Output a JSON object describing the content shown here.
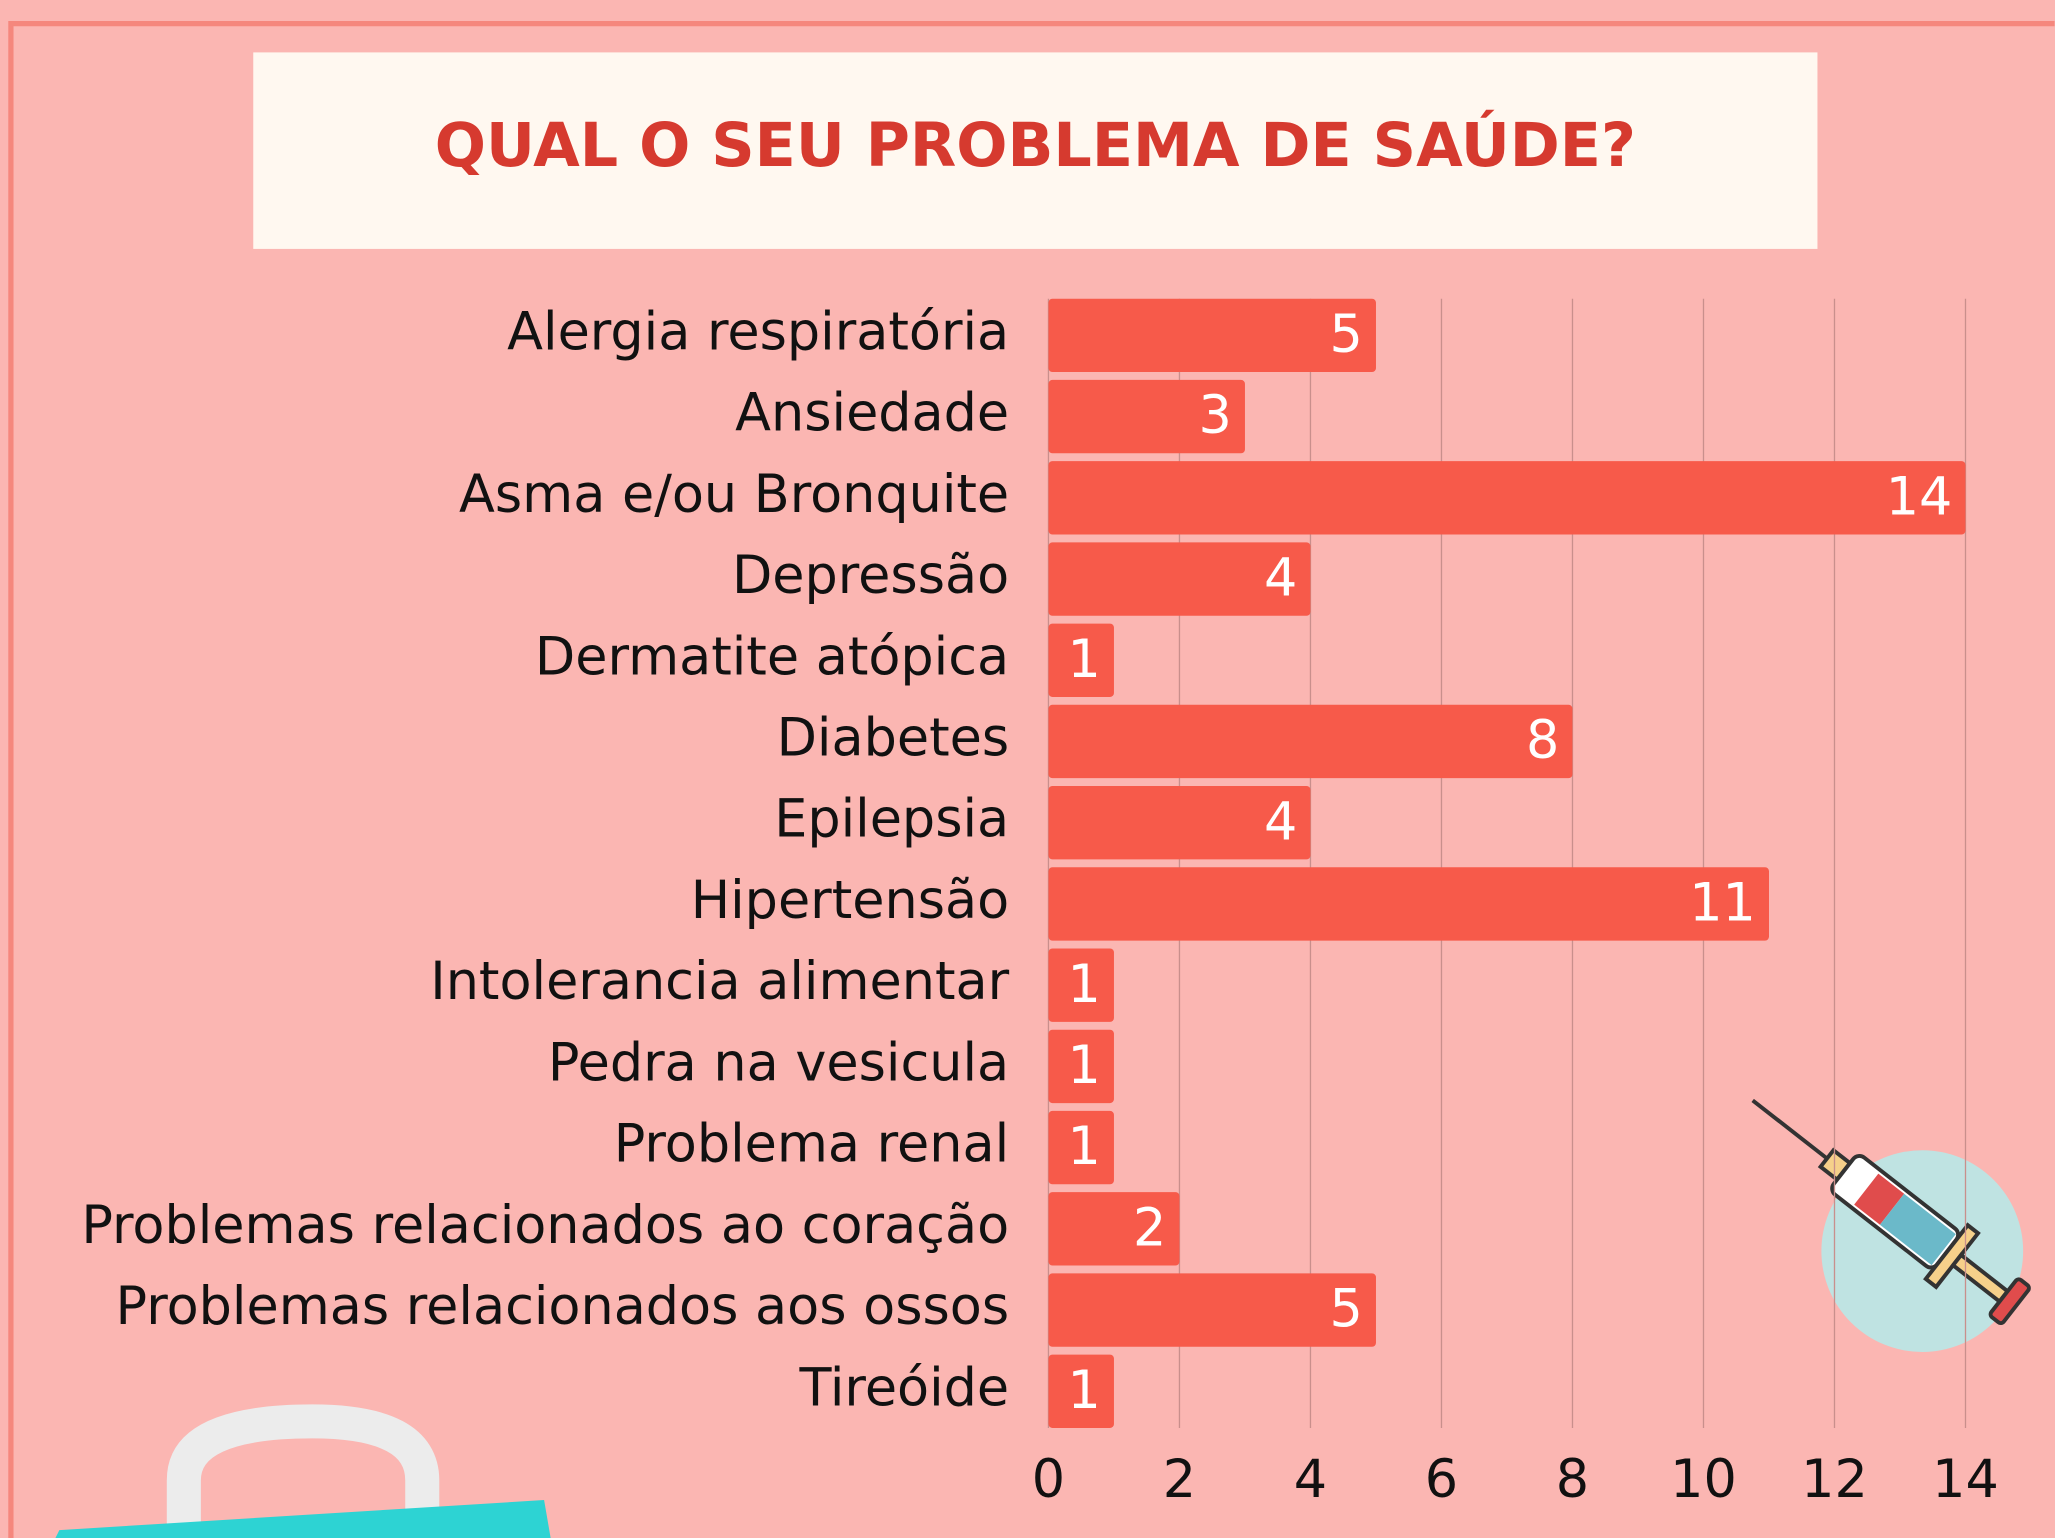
{
  "chart_data": {
    "type": "bar",
    "orientation": "horizontal",
    "title": "QUAL O SEU PROBLEMA DE SAÚDE?",
    "categories": [
      "Alergia respiratória",
      "Ansiedade",
      "Asma e/ou Bronquite",
      "Depressão",
      "Dermatite atópica",
      "Diabetes",
      "Epilepsia",
      "Hipertensão",
      "Intolerancia alimentar",
      "Pedra na vesicula",
      "Problema renal",
      "Problemas relacionados ao coração",
      "Problemas relacionados aos ossos",
      "Tireóide"
    ],
    "values": [
      5,
      3,
      14,
      4,
      1,
      8,
      4,
      11,
      1,
      1,
      1,
      2,
      5,
      1
    ],
    "color": "#f75a4a",
    "xlim": [
      0,
      14
    ],
    "xticks": [
      0,
      2,
      4,
      6,
      8,
      10,
      12,
      14
    ],
    "grid": true
  }
}
